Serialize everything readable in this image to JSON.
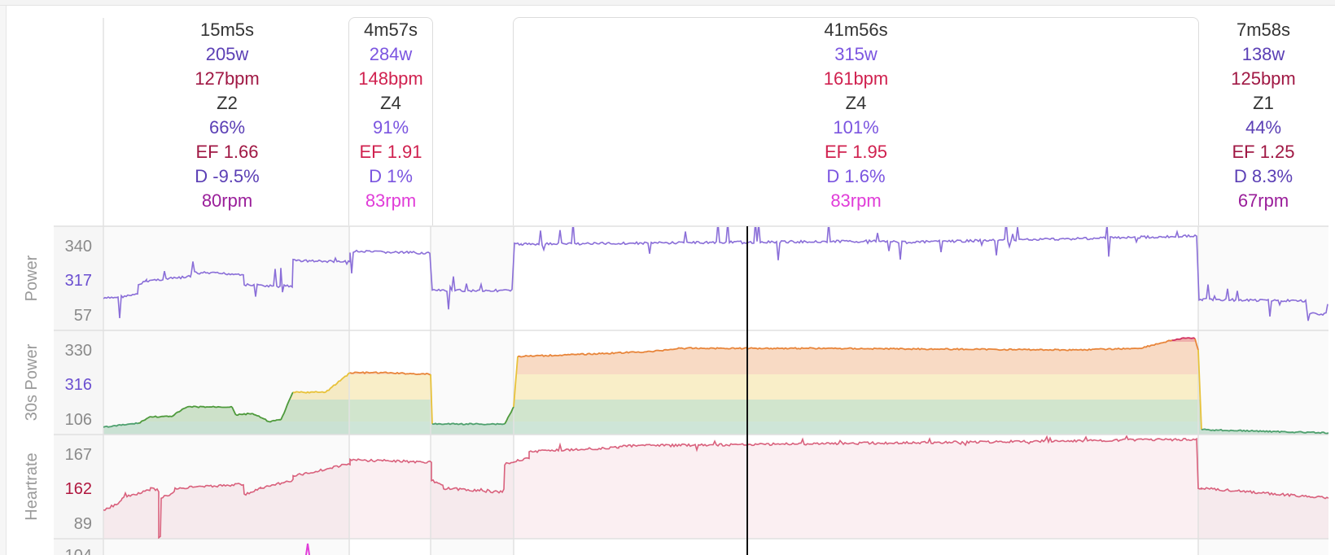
{
  "colors": {
    "power": "#8a6ed8",
    "power_dark": "#5b3fb5",
    "heartrate": "#d9607c",
    "hr_dark": "#a01844",
    "cadence": "#e03cd8",
    "z1": "#4ea06e",
    "z2": "#4e9a3c",
    "z3": "#e8c23a",
    "z4": "#e8853a",
    "z5": "#d23060",
    "text": "#333333",
    "muted": "#8a8a8a"
  },
  "intervals": [
    {
      "duration": "15m5s",
      "power": "205w",
      "heartrate": "127bpm",
      "zone": "Z2",
      "percent": "66%",
      "ef": "EF 1.66",
      "decoupling": "D -9.5%",
      "cadence": "80rpm",
      "selected": false
    },
    {
      "duration": "4m57s",
      "power": "284w",
      "heartrate": "148bpm",
      "zone": "Z4",
      "percent": "91%",
      "ef": "EF 1.91",
      "decoupling": "D 1%",
      "cadence": "83rpm",
      "selected": true
    },
    {
      "duration": "41m56s",
      "power": "315w",
      "heartrate": "161bpm",
      "zone": "Z4",
      "percent": "101%",
      "ef": "EF 1.95",
      "decoupling": "D 1.6%",
      "cadence": "83rpm",
      "selected": true
    },
    {
      "duration": "7m58s",
      "power": "138w",
      "heartrate": "125bpm",
      "zone": "Z1",
      "percent": "44%",
      "ef": "EF 1.25",
      "decoupling": "D 8.3%",
      "cadence": "67rpm",
      "selected": false
    }
  ],
  "chart_data": [
    {
      "type": "line",
      "ylabel": "Power",
      "tick_labels": [
        "340",
        "317",
        "57"
      ],
      "cursor_value": "317",
      "series": [
        {
          "values": [
            205,
            284,
            200,
            315,
            138,
            120
          ]
        }
      ]
    },
    {
      "type": "area",
      "ylabel": "30s Power",
      "tick_labels": [
        "330",
        "316",
        "106"
      ],
      "cursor_value": "316",
      "series": [
        {
          "values": [
            205,
            284,
            200,
            315,
            138,
            120
          ]
        }
      ]
    },
    {
      "type": "area",
      "ylabel": "Heartrate",
      "tick_labels": [
        "167",
        "162",
        "89"
      ],
      "cursor_value": "162",
      "series": [
        {
          "values": [
            127,
            148,
            140,
            161,
            125
          ]
        }
      ]
    },
    {
      "type": "line",
      "ylabel": "",
      "tick_labels": [
        "104"
      ],
      "series": []
    }
  ]
}
